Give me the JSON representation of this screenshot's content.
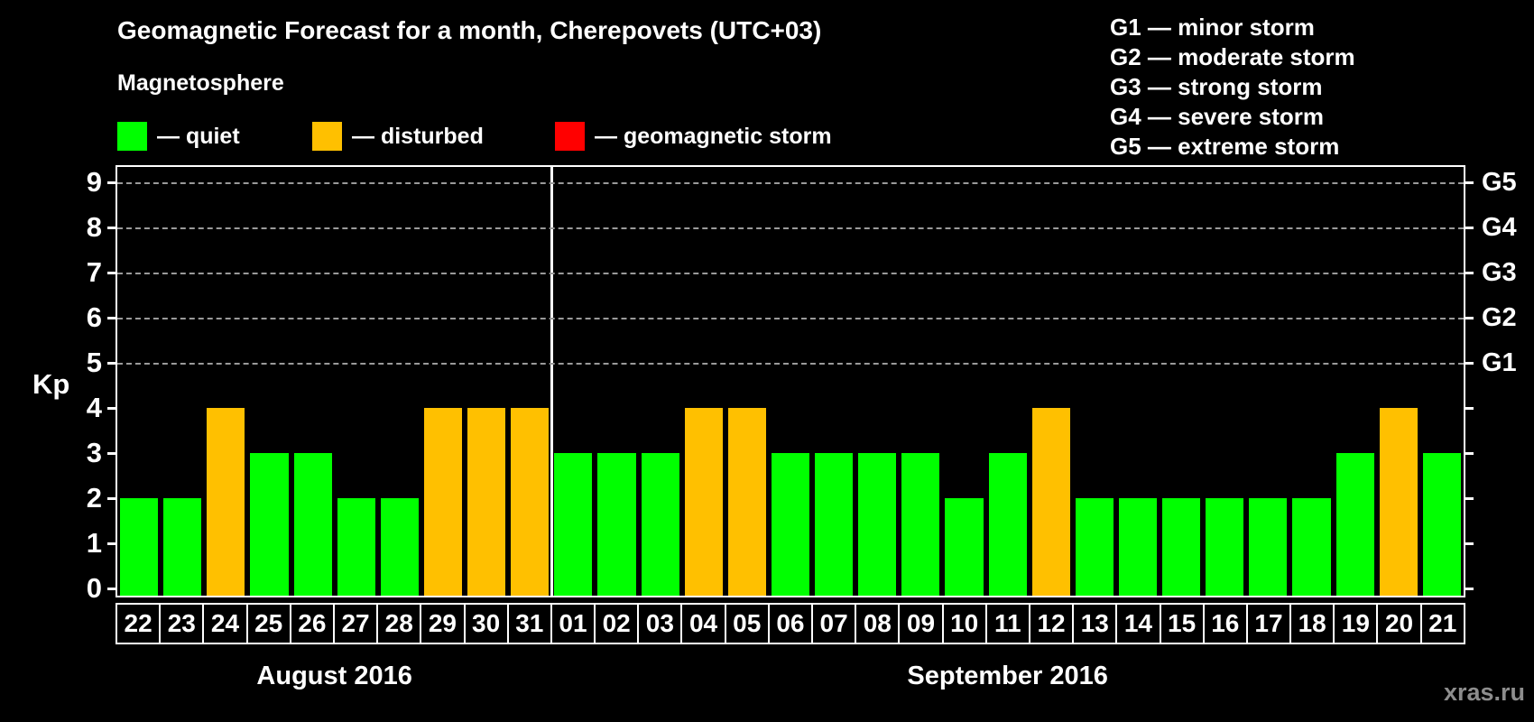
{
  "header": {
    "title": "Geomagnetic Forecast for a month, Cherepovets (UTC+03)",
    "subtitle": "Magnetosphere",
    "legend": [
      {
        "status": "quiet",
        "label": "— quiet",
        "color": "#00ff00"
      },
      {
        "status": "disturbed",
        "label": "— disturbed",
        "color": "#ffc000"
      },
      {
        "status": "storm",
        "label": "— geomagnetic storm",
        "color": "#ff0000"
      }
    ],
    "g_legend": [
      "G1 — minor storm",
      "G2 — moderate storm",
      "G3 — strong storm",
      "G4 — severe storm",
      "G5 — extreme storm"
    ]
  },
  "chart_data": {
    "type": "bar",
    "title": "Geomagnetic Forecast for a month, Cherepovets (UTC+03)",
    "xlabel": "",
    "ylabel": "Kp",
    "ylim": [
      0,
      9
    ],
    "y_ticks": [
      0,
      1,
      2,
      3,
      4,
      5,
      6,
      7,
      8,
      9
    ],
    "gridlines_at_kp": [
      5,
      6,
      7,
      8,
      9
    ],
    "grid_style": "dashed",
    "legend_position": "top",
    "right_axis_labels": [
      {
        "kp": 5,
        "label": "G1"
      },
      {
        "kp": 6,
        "label": "G2"
      },
      {
        "kp": 7,
        "label": "G3"
      },
      {
        "kp": 8,
        "label": "G4"
      },
      {
        "kp": 9,
        "label": "G5"
      }
    ],
    "status_colors": {
      "quiet": "#00ff00",
      "disturbed": "#ffc000",
      "storm": "#ff0000"
    },
    "months": [
      {
        "label": "August 2016",
        "bars": [
          {
            "day": "22",
            "kp": 2,
            "status": "quiet"
          },
          {
            "day": "23",
            "kp": 2,
            "status": "quiet"
          },
          {
            "day": "24",
            "kp": 4,
            "status": "disturbed"
          },
          {
            "day": "25",
            "kp": 3,
            "status": "quiet"
          },
          {
            "day": "26",
            "kp": 3,
            "status": "quiet"
          },
          {
            "day": "27",
            "kp": 2,
            "status": "quiet"
          },
          {
            "day": "28",
            "kp": 2,
            "status": "quiet"
          },
          {
            "day": "29",
            "kp": 4,
            "status": "disturbed"
          },
          {
            "day": "30",
            "kp": 4,
            "status": "disturbed"
          },
          {
            "day": "31",
            "kp": 4,
            "status": "disturbed"
          }
        ]
      },
      {
        "label": "September 2016",
        "bars": [
          {
            "day": "01",
            "kp": 3,
            "status": "quiet"
          },
          {
            "day": "02",
            "kp": 3,
            "status": "quiet"
          },
          {
            "day": "03",
            "kp": 3,
            "status": "quiet"
          },
          {
            "day": "04",
            "kp": 4,
            "status": "disturbed"
          },
          {
            "day": "05",
            "kp": 4,
            "status": "disturbed"
          },
          {
            "day": "06",
            "kp": 3,
            "status": "quiet"
          },
          {
            "day": "07",
            "kp": 3,
            "status": "quiet"
          },
          {
            "day": "08",
            "kp": 3,
            "status": "quiet"
          },
          {
            "day": "09",
            "kp": 3,
            "status": "quiet"
          },
          {
            "day": "10",
            "kp": 2,
            "status": "quiet"
          },
          {
            "day": "11",
            "kp": 3,
            "status": "quiet"
          },
          {
            "day": "12",
            "kp": 4,
            "status": "disturbed"
          },
          {
            "day": "13",
            "kp": 2,
            "status": "quiet"
          },
          {
            "day": "14",
            "kp": 2,
            "status": "quiet"
          },
          {
            "day": "15",
            "kp": 2,
            "status": "quiet"
          },
          {
            "day": "16",
            "kp": 2,
            "status": "quiet"
          },
          {
            "day": "17",
            "kp": 2,
            "status": "quiet"
          },
          {
            "day": "18",
            "kp": 2,
            "status": "quiet"
          },
          {
            "day": "19",
            "kp": 3,
            "status": "quiet"
          },
          {
            "day": "20",
            "kp": 4,
            "status": "disturbed"
          },
          {
            "day": "21",
            "kp": 3,
            "status": "quiet"
          }
        ]
      }
    ]
  },
  "watermark": "xras.ru",
  "colors": {
    "background": "#000000",
    "text": "#ffffff",
    "axis": "#ffffff",
    "grid": "#9a9a9a",
    "watermark": "#8d8d8d"
  }
}
